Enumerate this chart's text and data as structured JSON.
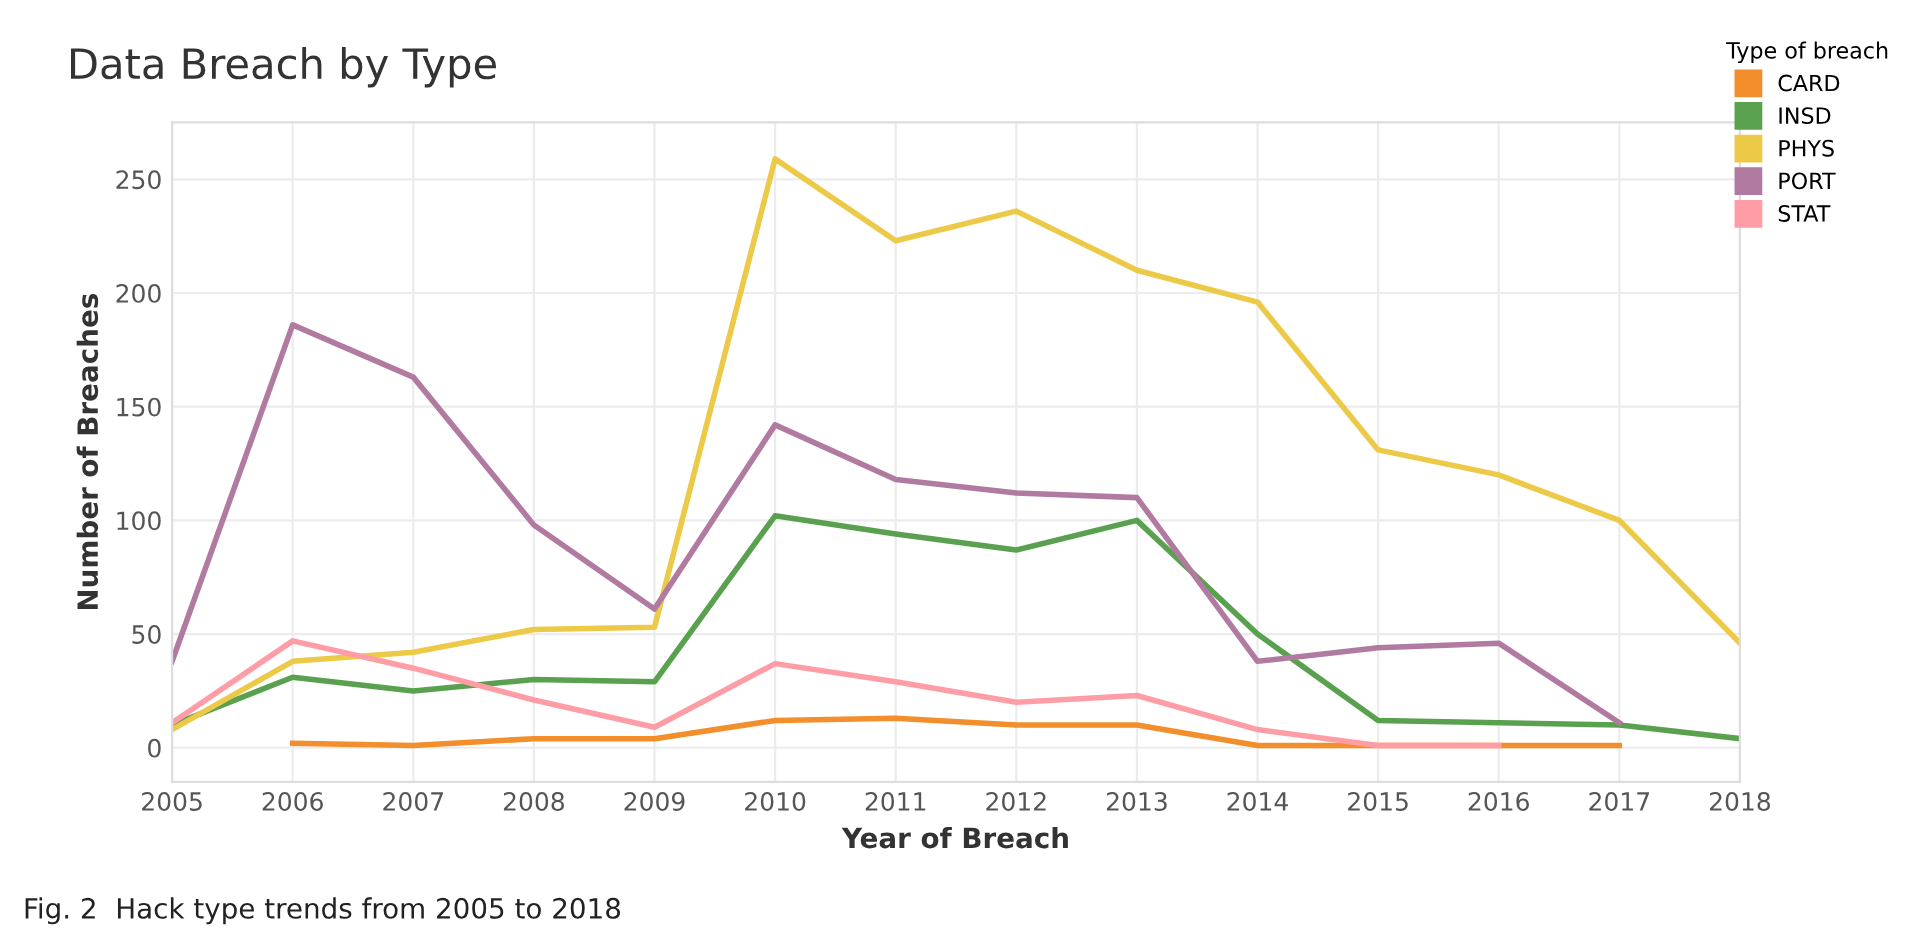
{
  "chart_data": {
    "type": "line",
    "title": "Data Breach by Type",
    "xlabel": "Year of Breach",
    "ylabel": "Number of Breaches",
    "legend_title": "Type of breach",
    "x": [
      2005,
      2006,
      2007,
      2008,
      2009,
      2010,
      2011,
      2012,
      2013,
      2014,
      2015,
      2016,
      2017,
      2018
    ],
    "series": [
      {
        "name": "CARD",
        "color": "#f28e2b",
        "values": [
          null,
          2,
          1,
          4,
          4,
          12,
          13,
          10,
          10,
          1,
          1,
          1,
          1,
          null
        ]
      },
      {
        "name": "INSD",
        "color": "#59a14f",
        "values": [
          10,
          31,
          25,
          30,
          29,
          102,
          94,
          87,
          100,
          50,
          12,
          11,
          10,
          4
        ]
      },
      {
        "name": "PHYS",
        "color": "#edc948",
        "values": [
          8,
          38,
          42,
          52,
          53,
          259,
          223,
          236,
          210,
          196,
          131,
          120,
          100,
          46
        ]
      },
      {
        "name": "PORT",
        "color": "#b07aa1",
        "values": [
          38,
          186,
          163,
          98,
          61,
          142,
          118,
          112,
          110,
          38,
          44,
          46,
          11,
          null
        ]
      },
      {
        "name": "STAT",
        "color": "#ff9da7",
        "values": [
          11,
          47,
          35,
          21,
          9,
          37,
          29,
          20,
          23,
          8,
          1,
          1,
          null,
          null
        ]
      }
    ],
    "xlim": [
      2005,
      2018
    ],
    "xticks": [
      2005,
      2006,
      2007,
      2008,
      2009,
      2010,
      2011,
      2012,
      2013,
      2014,
      2015,
      2016,
      2017,
      2018
    ],
    "ylim": [
      -15,
      275
    ],
    "yticks": [
      0,
      50,
      100,
      150,
      200,
      250
    ],
    "grid": true,
    "legend": "top right",
    "marker": "none",
    "line_style": "solid",
    "annotations": [
      "Fig. 2  Hack type trends from 2005 to 2018"
    ]
  }
}
